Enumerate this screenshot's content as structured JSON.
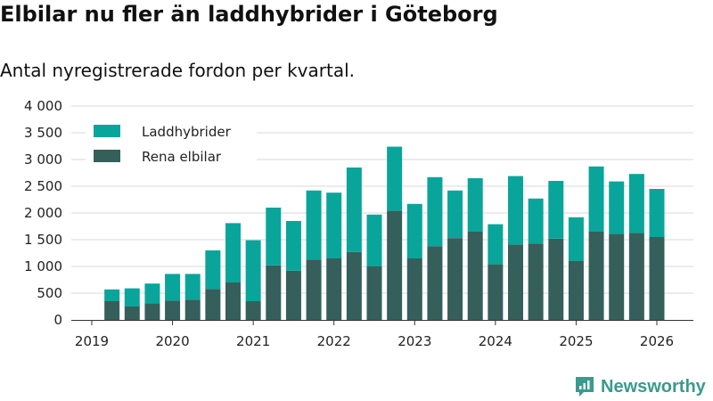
{
  "title": "Elbilar nu fler än laddhybrider i Göteborg",
  "subtitle": "Antal nyregistrerade fordon per kvartal.",
  "brand": "Newsworthy",
  "colors": {
    "laddhybrider": "#09a59b",
    "elbilar": "#355f5b",
    "grid": "#d9d9d9",
    "brand": "#3a9a8e"
  },
  "chart_data": {
    "type": "bar",
    "stacked": true,
    "title": "Elbilar nu fler än laddhybrider i Göteborg",
    "subtitle": "Antal nyregistrerade fordon per kvartal.",
    "xlabel": "",
    "ylabel": "",
    "ylim": [
      0,
      4000
    ],
    "yticks": [
      0,
      500,
      1000,
      1500,
      2000,
      2500,
      3000,
      3500,
      4000
    ],
    "ytick_labels": [
      "0",
      "500",
      "1 000",
      "1 500",
      "2 000",
      "2 500",
      "3 000",
      "3 500",
      "4 000"
    ],
    "xticks": [
      "2019",
      "2020",
      "2021",
      "2022",
      "2023",
      "2024",
      "2025",
      "2026"
    ],
    "legend_position": "top-left",
    "categories": [
      "2019 Q2",
      "2019 Q3",
      "2019 Q4",
      "2020 Q1",
      "2020 Q2",
      "2020 Q3",
      "2020 Q4",
      "2021 Q1",
      "2021 Q2",
      "2021 Q3",
      "2021 Q4",
      "2022 Q1",
      "2022 Q2",
      "2022 Q3",
      "2022 Q4",
      "2023 Q1",
      "2023 Q2",
      "2023 Q3",
      "2023 Q4",
      "2024 Q1",
      "2024 Q2",
      "2024 Q3",
      "2024 Q4",
      "2025 Q1",
      "2025 Q2",
      "2025 Q3",
      "2025 Q4",
      "2026 Q1"
    ],
    "series": [
      {
        "name": "Rena elbilar",
        "values": [
          350,
          250,
          310,
          360,
          380,
          580,
          700,
          350,
          1020,
          920,
          1130,
          1150,
          1270,
          1000,
          2040,
          1150,
          1380,
          1530,
          1650,
          1040,
          1410,
          1430,
          1520,
          1100,
          1650,
          1610,
          1630,
          1550
        ]
      },
      {
        "name": "Laddhybrider",
        "values": [
          220,
          340,
          370,
          500,
          480,
          720,
          1110,
          1140,
          1080,
          930,
          1290,
          1230,
          1580,
          970,
          1200,
          1020,
          1290,
          890,
          1000,
          750,
          1280,
          840,
          1080,
          820,
          1220,
          980,
          1100,
          900
        ]
      }
    ]
  }
}
